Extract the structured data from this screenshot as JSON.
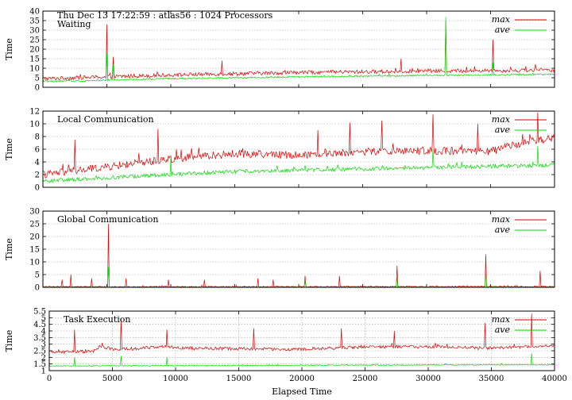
{
  "header": {
    "title": "Thu Dec 13 17:22:59 : atlas56 : 1024 Processors"
  },
  "colors": {
    "max": "#e00000",
    "ave": "#00dd00",
    "grid": "#a0a0a0"
  },
  "chart_data": [
    {
      "type": "line",
      "title": "Waiting",
      "ylabel": "Time",
      "xlim": [
        0,
        40000
      ],
      "ylim": [
        0,
        40
      ],
      "yticks": [
        0,
        5,
        10,
        15,
        20,
        25,
        30,
        35,
        40
      ],
      "grid": true,
      "legend_position": "top-right",
      "series": [
        {
          "name": "max",
          "baseline": [
            [
              0,
              4.5
            ],
            [
              10000,
              6.5
            ],
            [
              20000,
              7.8
            ],
            [
              30000,
              8.5
            ],
            [
              40000,
              9.0
            ]
          ],
          "noise": 1.0,
          "spikes": [
            [
              5000,
              33
            ],
            [
              5500,
              16
            ],
            [
              14000,
              14
            ],
            [
              28000,
              15
            ],
            [
              31500,
              35
            ],
            [
              35200,
              25
            ],
            [
              38500,
              12
            ]
          ]
        },
        {
          "name": "ave",
          "baseline": [
            [
              0,
              3.0
            ],
            [
              10000,
              4.5
            ],
            [
              20000,
              5.5
            ],
            [
              30000,
              6.2
            ],
            [
              40000,
              6.8
            ]
          ],
          "noise": 0.4,
          "spikes": [
            [
              5000,
              18
            ],
            [
              5500,
              12
            ],
            [
              31500,
              37
            ],
            [
              35200,
              13
            ]
          ]
        }
      ]
    },
    {
      "type": "line",
      "title": "Local Communication",
      "ylabel": "Time",
      "xlim": [
        0,
        40000
      ],
      "ylim": [
        0,
        12
      ],
      "yticks": [
        0,
        2,
        4,
        6,
        8,
        10,
        12
      ],
      "grid": true,
      "legend_position": "top-right",
      "series": [
        {
          "name": "max",
          "baseline": [
            [
              0,
              2.0
            ],
            [
              5000,
              3.2
            ],
            [
              10000,
              4.5
            ],
            [
              15000,
              5.3
            ],
            [
              20000,
              5.1
            ],
            [
              25000,
              5.6
            ],
            [
              30000,
              5.8
            ],
            [
              35000,
              5.6
            ],
            [
              37000,
              6.8
            ],
            [
              40000,
              7.8
            ]
          ],
          "noise": 0.6,
          "spikes": [
            [
              2500,
              7.5
            ],
            [
              9000,
              9.2
            ],
            [
              21500,
              9.0
            ],
            [
              24000,
              10.2
            ],
            [
              26500,
              10.5
            ],
            [
              30500,
              11.5
            ],
            [
              34000,
              10.0
            ],
            [
              38700,
              11.8
            ]
          ]
        },
        {
          "name": "ave",
          "baseline": [
            [
              0,
              1.0
            ],
            [
              5000,
              1.5
            ],
            [
              10000,
              2.0
            ],
            [
              15000,
              2.5
            ],
            [
              20000,
              2.7
            ],
            [
              25000,
              2.9
            ],
            [
              30000,
              3.1
            ],
            [
              35000,
              3.3
            ],
            [
              40000,
              3.5
            ]
          ],
          "noise": 0.3,
          "spikes": [
            [
              10000,
              4.5
            ],
            [
              30500,
              6.0
            ],
            [
              38700,
              6.5
            ]
          ]
        }
      ]
    },
    {
      "type": "line",
      "title": "Global Communication",
      "ylabel": "Time",
      "xlim": [
        0,
        40000
      ],
      "ylim": [
        0,
        30
      ],
      "yticks": [
        0,
        5,
        10,
        15,
        20,
        25,
        30
      ],
      "grid": true,
      "legend_position": "top-right",
      "series": [
        {
          "name": "max",
          "baseline": [
            [
              0,
              0.2
            ],
            [
              40000,
              0.3
            ]
          ],
          "noise": 0.2,
          "spikes": [
            [
              1500,
              3
            ],
            [
              2200,
              5
            ],
            [
              3800,
              3.5
            ],
            [
              5100,
              25
            ],
            [
              6500,
              3.5
            ],
            [
              9800,
              3
            ],
            [
              12600,
              3
            ],
            [
              16800,
              3.5
            ],
            [
              18000,
              3
            ],
            [
              20500,
              4.5
            ],
            [
              23200,
              4.5
            ],
            [
              27700,
              8.5
            ],
            [
              34600,
              13
            ],
            [
              38900,
              6.5
            ]
          ]
        },
        {
          "name": "ave",
          "baseline": [
            [
              0,
              0.1
            ],
            [
              40000,
              0.15
            ]
          ],
          "noise": 0.1,
          "spikes": [
            [
              5100,
              8
            ],
            [
              20500,
              2.5
            ],
            [
              27700,
              4
            ],
            [
              34600,
              6
            ]
          ]
        }
      ]
    },
    {
      "type": "line",
      "title": "Task Execution",
      "ylabel": "Time",
      "xlabel": "Elapsed Time",
      "xlim": [
        0,
        40000
      ],
      "ylim": [
        1,
        5.5
      ],
      "yticks": [
        1,
        1.5,
        2,
        2.5,
        3,
        3.5,
        4,
        4.5,
        5,
        5.5
      ],
      "xticks": [
        0,
        5000,
        10000,
        15000,
        20000,
        25000,
        30000,
        35000,
        40000
      ],
      "grid": true,
      "legend_position": "top-right",
      "series": [
        {
          "name": "max",
          "baseline": [
            [
              0,
              2.4
            ],
            [
              3500,
              2.45
            ],
            [
              4000,
              2.8
            ],
            [
              5500,
              2.6
            ],
            [
              9000,
              2.8
            ],
            [
              11000,
              2.7
            ],
            [
              20000,
              2.6
            ],
            [
              25000,
              2.8
            ],
            [
              30000,
              2.8
            ],
            [
              35000,
              2.7
            ],
            [
              40000,
              2.9
            ]
          ],
          "noise": 0.12,
          "spikes": [
            [
              2000,
              4.1
            ],
            [
              5700,
              4.9
            ],
            [
              9300,
              4.1
            ],
            [
              16200,
              4.2
            ],
            [
              23100,
              4.2
            ],
            [
              27300,
              4.0
            ],
            [
              34500,
              4.6
            ],
            [
              38200,
              5.3
            ]
          ]
        },
        {
          "name": "ave",
          "baseline": [
            [
              0,
              1.35
            ],
            [
              40000,
              1.45
            ]
          ],
          "noise": 0.04,
          "spikes": [
            [
              2000,
              2.0
            ],
            [
              5700,
              2.1
            ],
            [
              9300,
              2.0
            ],
            [
              38200,
              2.3
            ]
          ]
        }
      ]
    }
  ]
}
